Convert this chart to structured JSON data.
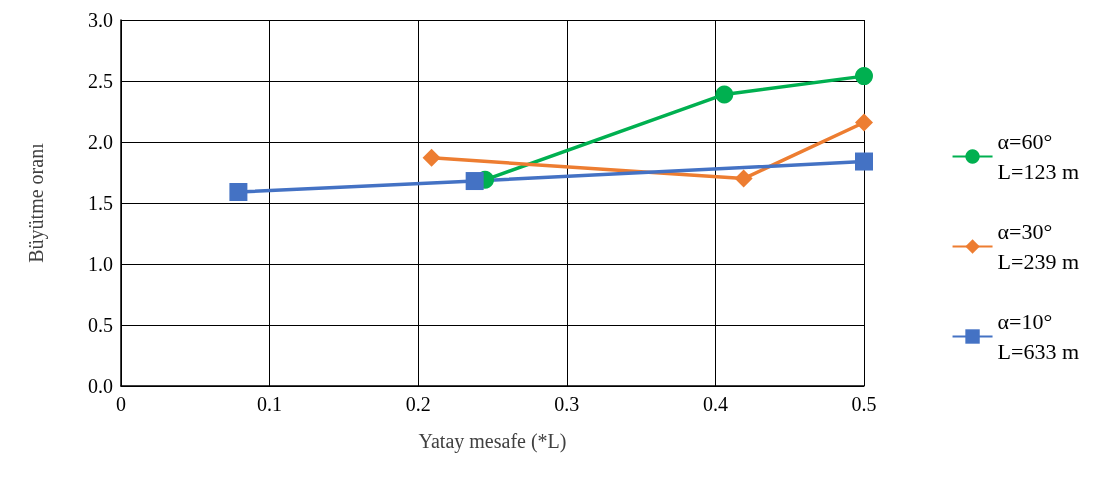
{
  "chart_data": {
    "type": "line",
    "xlabel": "Yatay mesafe (*L)",
    "ylabel": "Büyütme oranı",
    "xlim": [
      0,
      0.5
    ],
    "xticks": [
      0,
      0.1,
      0.2,
      0.3,
      0.4,
      0.5
    ],
    "ylim": [
      0,
      3
    ],
    "yticks": [
      {
        "value": 0,
        "label": "0.0"
      },
      {
        "value": 0.5,
        "label": "0.5"
      },
      {
        "value": 1,
        "label": "1.0"
      },
      {
        "value": 1.5,
        "label": "1.5"
      },
      {
        "value": 2,
        "label": "2.0"
      },
      {
        "value": 2.5,
        "label": "2.5"
      },
      {
        "value": 3,
        "label": "3.0"
      }
    ],
    "grid": true,
    "legend": "right",
    "line_style": "solid",
    "series": [
      {
        "name": "α=60°\nL=123 m",
        "color": "#00b050",
        "marker": "circle",
        "x": [
          0.245,
          0.406,
          0.5
        ],
        "values": [
          1.69,
          2.39,
          2.54
        ]
      },
      {
        "name": "α=30°\nL=239 m",
        "color": "#ed7d31",
        "marker": "diamond",
        "x": [
          0.209,
          0.419,
          0.5
        ],
        "values": [
          1.87,
          1.7,
          2.16
        ]
      },
      {
        "name": "α=10°\nL=633 m",
        "color": "#4472c4",
        "marker": "square",
        "x": [
          0.079,
          0.238,
          0.5
        ],
        "values": [
          1.59,
          1.68,
          1.84
        ]
      }
    ]
  }
}
